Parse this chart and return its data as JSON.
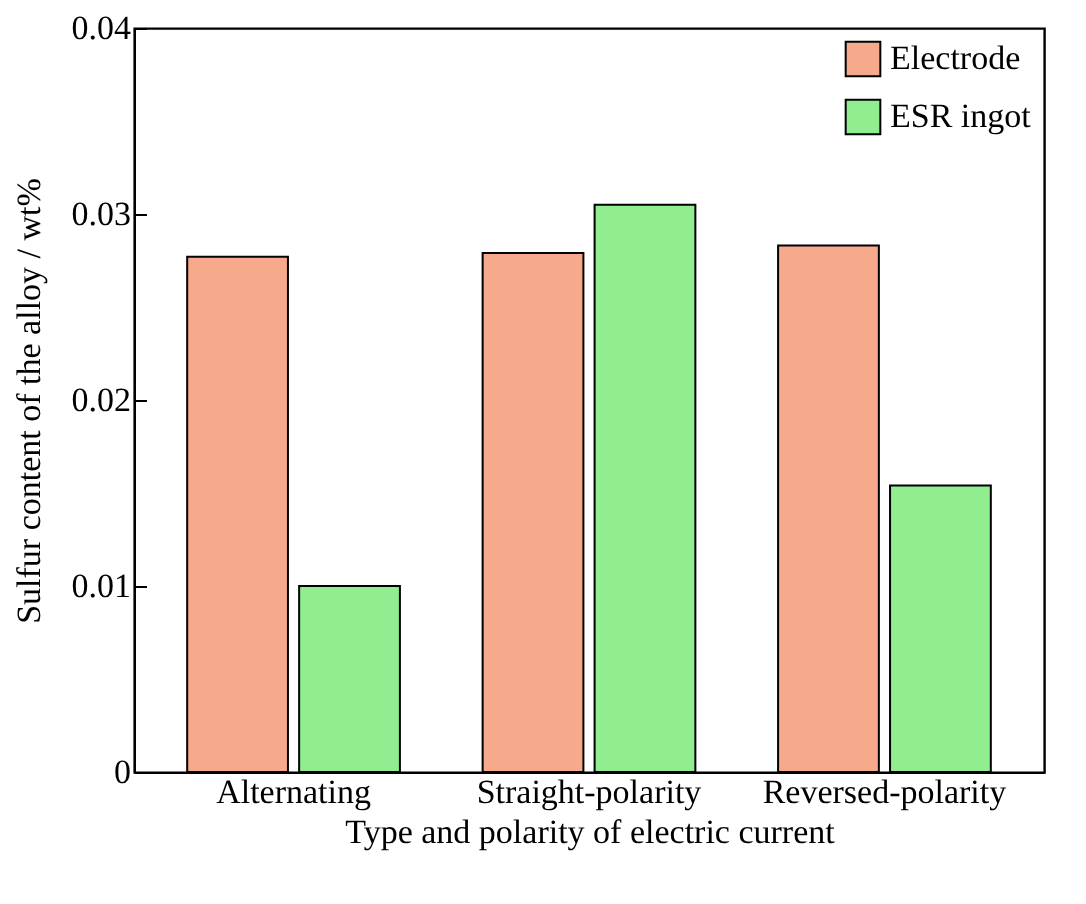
{
  "chart_data": {
    "type": "bar",
    "xlabel": "Type and polarity of electric current",
    "ylabel": "Sulfur content of the alloy / wt%",
    "categories": [
      "Alternating",
      "Straight-polarity",
      "Reversed-polarity"
    ],
    "series": [
      {
        "name": "Electrode",
        "color": "#f7a98b",
        "values": [
          0.0277,
          0.0279,
          0.0283
        ]
      },
      {
        "name": "ESR ingot",
        "color": "#90ee90",
        "values": [
          0.01,
          0.0305,
          0.0154
        ]
      }
    ],
    "ylim": [
      0,
      0.04
    ],
    "yticks": [
      0,
      0.01,
      0.02,
      0.03,
      0.04
    ],
    "grid": false,
    "legend": "top right"
  }
}
